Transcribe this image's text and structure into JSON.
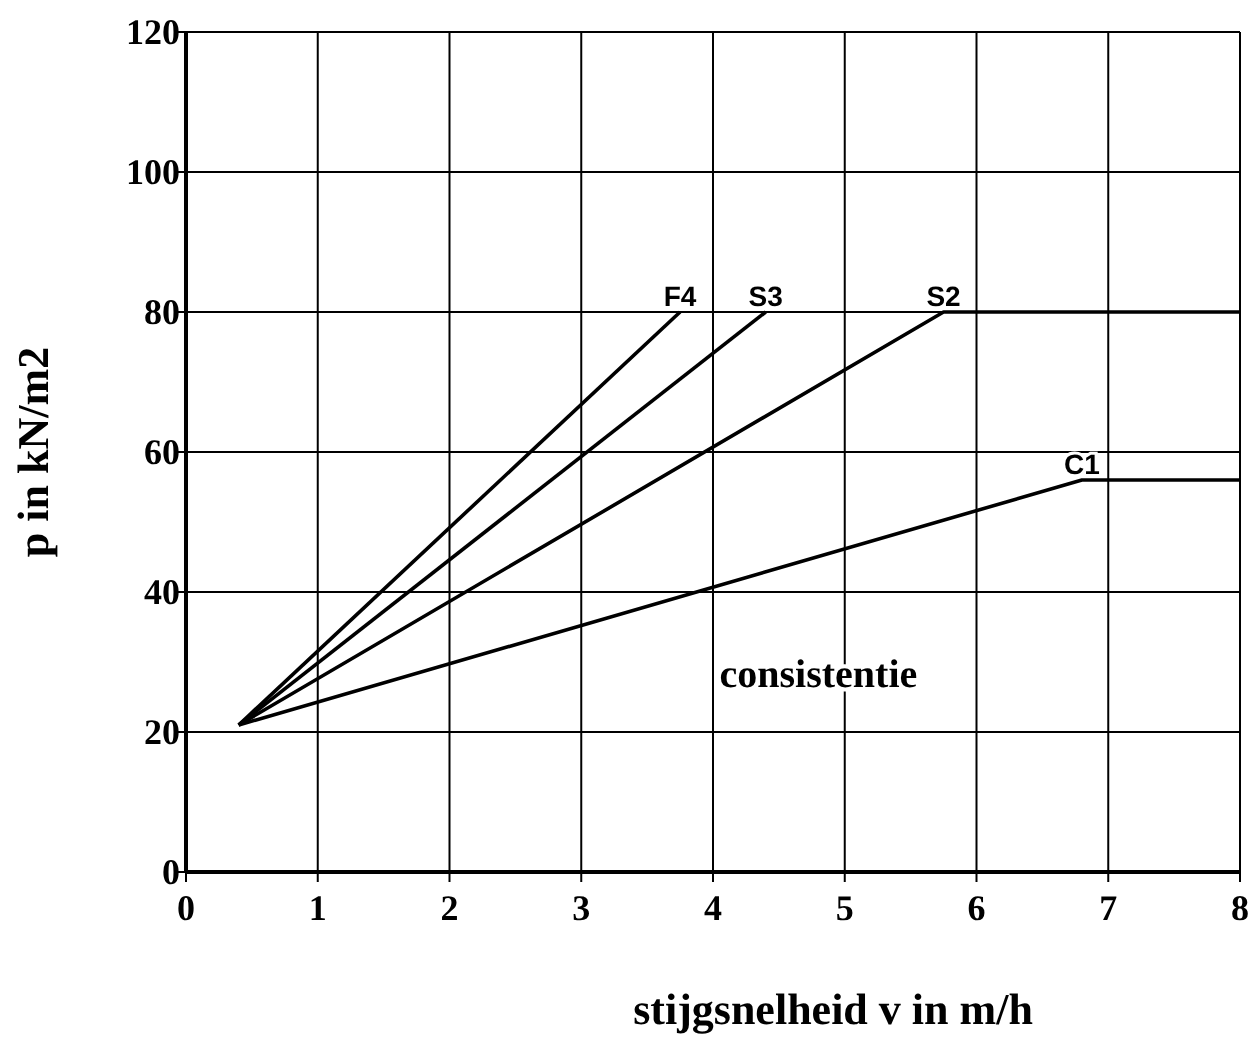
{
  "chart_data": {
    "type": "line",
    "xlabel": "stijgsnelheid v in m/h",
    "ylabel": "p in kN/m2",
    "xlim": [
      0,
      8
    ],
    "ylim": [
      0,
      120
    ],
    "xticks": [
      0,
      1,
      2,
      3,
      4,
      5,
      6,
      7,
      8
    ],
    "yticks": [
      0,
      20,
      40,
      60,
      80,
      100,
      120
    ],
    "grid": true,
    "line_style": "solid",
    "marker": "none",
    "series": [
      {
        "name": "F4",
        "color": "#000000",
        "x": [
          0.4,
          3.75
        ],
        "values": [
          21,
          80
        ]
      },
      {
        "name": "S3",
        "color": "#000000",
        "x": [
          0.4,
          4.4
        ],
        "values": [
          21,
          80
        ]
      },
      {
        "name": "S2",
        "color": "#000000",
        "x": [
          0.4,
          5.75,
          8
        ],
        "values": [
          21,
          80,
          80
        ]
      },
      {
        "name": "C1",
        "color": "#000000",
        "x": [
          0.4,
          6.8,
          6.85,
          8
        ],
        "values": [
          21,
          56,
          56,
          56
        ]
      }
    ],
    "annotations": [
      "consistentie"
    ]
  }
}
